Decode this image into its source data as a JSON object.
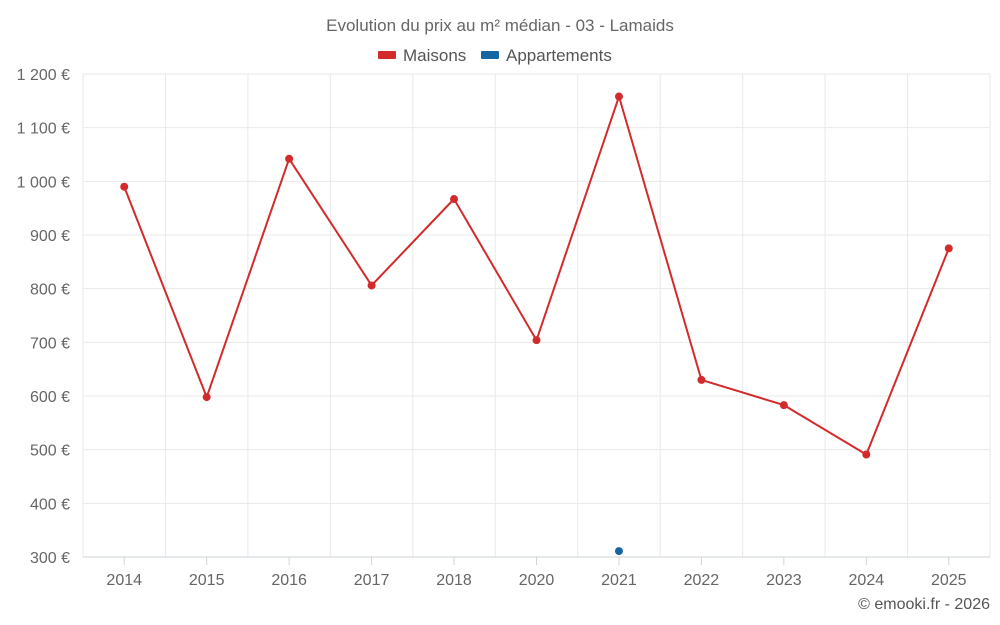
{
  "chart_data": {
    "type": "line",
    "title": "Evolution du prix au m² médian - 03 - Lamaids",
    "categories": [
      "2014",
      "2015",
      "2016",
      "2017",
      "2018",
      "2020",
      "2021",
      "2022",
      "2023",
      "2024",
      "2025"
    ],
    "series": [
      {
        "name": "Maisons",
        "color": "#d32b2b",
        "values": [
          990,
          598,
          1042,
          806,
          967,
          704,
          1158,
          630,
          583,
          491,
          875
        ]
      },
      {
        "name": "Appartements",
        "color": "#1565a0",
        "values": [
          null,
          null,
          null,
          null,
          null,
          null,
          311,
          null,
          null,
          null,
          null
        ]
      }
    ],
    "ylim": [
      300,
      1200
    ],
    "yticks": [
      300,
      400,
      500,
      600,
      700,
      800,
      900,
      1000,
      1100,
      1200
    ],
    "ytick_labels": [
      "300 €",
      "400 €",
      "500 €",
      "600 €",
      "700 €",
      "800 €",
      "900 €",
      "1 000 €",
      "1 100 €",
      "1 200 €"
    ],
    "grid": true,
    "legend_position": "top-center"
  },
  "credit": "© emooki.fr - 2026"
}
